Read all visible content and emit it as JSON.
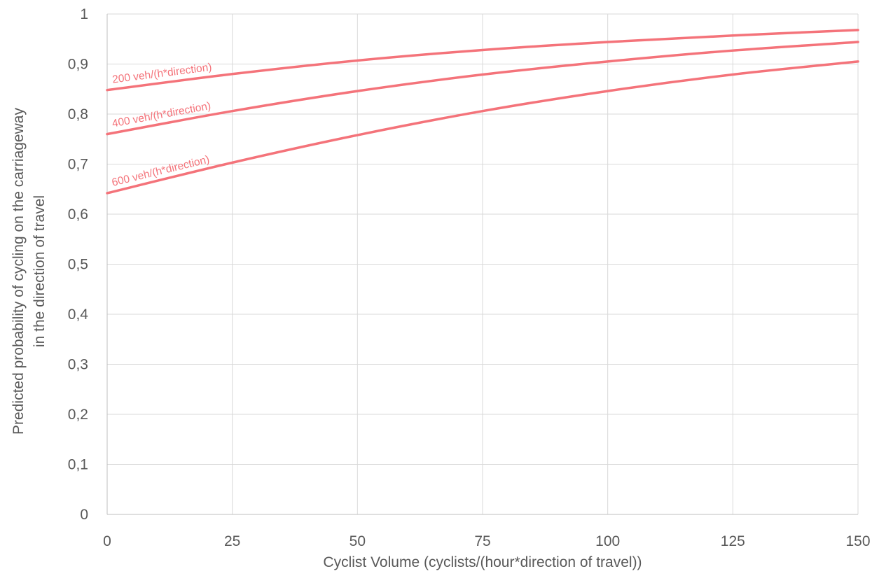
{
  "chart_data": {
    "type": "line",
    "title": "",
    "xlabel": "Cyclist Volume (cyclists/(hour*direction of travel))",
    "ylabel_lines": [
      "Predicted probability of cycling  on the carriageway",
      "in the direction of travel"
    ],
    "xlim": [
      0,
      150
    ],
    "ylim": [
      0,
      1
    ],
    "x_ticks": [
      0,
      25,
      50,
      75,
      100,
      125,
      150
    ],
    "x_tick_labels": [
      "0",
      "25",
      "50",
      "75",
      "100",
      "125",
      "150"
    ],
    "y_ticks": [
      0,
      0.1,
      0.2,
      0.3,
      0.4,
      0.5,
      0.6,
      0.7,
      0.8,
      0.9,
      1
    ],
    "y_tick_labels": [
      "0",
      "0,1",
      "0,2",
      "0,3",
      "0,4",
      "0,5",
      "0,6",
      "0,7",
      "0,8",
      "0,9",
      "1"
    ],
    "grid": true,
    "legend": "none (inline labels on curves)",
    "line_color": "#f4737a",
    "label_color": "#f4737a",
    "series": [
      {
        "name": "200 veh/(h*direction)",
        "x": [
          0,
          25,
          50,
          75,
          100,
          125,
          150
        ],
        "y": [
          0.848,
          0.88,
          0.907,
          0.928,
          0.944,
          0.957,
          0.968
        ]
      },
      {
        "name": "400 veh/(h*direction)",
        "x": [
          0,
          25,
          50,
          75,
          100,
          125,
          150
        ],
        "y": [
          0.76,
          0.806,
          0.846,
          0.879,
          0.905,
          0.927,
          0.944
        ]
      },
      {
        "name": "600 veh/(h*direction)",
        "x": [
          0,
          25,
          50,
          75,
          100,
          125,
          150
        ],
        "y": [
          0.642,
          0.703,
          0.758,
          0.806,
          0.846,
          0.879,
          0.905
        ]
      }
    ]
  }
}
